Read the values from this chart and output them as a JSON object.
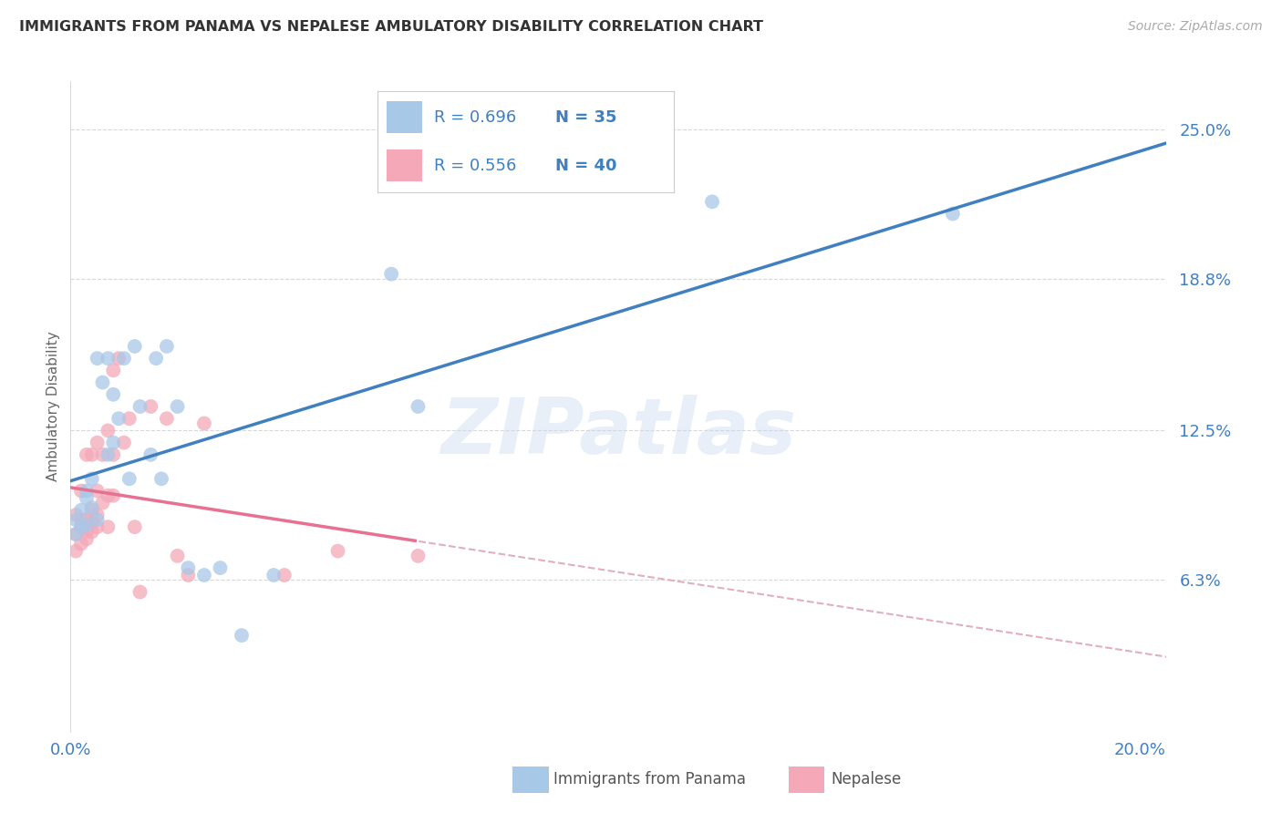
{
  "title": "IMMIGRANTS FROM PANAMA VS NEPALESE AMBULATORY DISABILITY CORRELATION CHART",
  "source": "Source: ZipAtlas.com",
  "ylabel_label": "Ambulatory Disability",
  "legend_label1": "Immigrants from Panama",
  "legend_label2": "Nepalese",
  "R1": 0.696,
  "N1": 35,
  "R2": 0.556,
  "N2": 40,
  "x_min": 0.0,
  "x_max": 0.205,
  "y_min": 0.0,
  "y_max": 0.27,
  "y_ticks": [
    0.063,
    0.125,
    0.188,
    0.25
  ],
  "y_tick_labels": [
    "6.3%",
    "12.5%",
    "18.8%",
    "25.0%"
  ],
  "x_tick_labels": [
    "0.0%",
    "20.0%"
  ],
  "color_blue": "#a8c8e8",
  "color_pink": "#f4a8b8",
  "line_blue": "#4080c0",
  "line_pink": "#e87090",
  "line_dashed_color": "#e0b0bc",
  "text_color": "#4080c0",
  "watermark": "ZIPatlas",
  "panama_x": [
    0.001,
    0.001,
    0.002,
    0.002,
    0.003,
    0.003,
    0.003,
    0.004,
    0.004,
    0.005,
    0.005,
    0.006,
    0.007,
    0.007,
    0.008,
    0.008,
    0.009,
    0.01,
    0.011,
    0.012,
    0.013,
    0.015,
    0.016,
    0.017,
    0.018,
    0.02,
    0.022,
    0.025,
    0.028,
    0.032,
    0.038,
    0.06,
    0.065,
    0.12,
    0.165
  ],
  "panama_y": [
    0.082,
    0.088,
    0.085,
    0.092,
    0.086,
    0.1,
    0.097,
    0.093,
    0.105,
    0.088,
    0.155,
    0.145,
    0.115,
    0.155,
    0.14,
    0.12,
    0.13,
    0.155,
    0.105,
    0.16,
    0.135,
    0.115,
    0.155,
    0.105,
    0.16,
    0.135,
    0.068,
    0.065,
    0.068,
    0.04,
    0.065,
    0.19,
    0.135,
    0.22,
    0.215
  ],
  "nepalese_x": [
    0.001,
    0.001,
    0.001,
    0.002,
    0.002,
    0.002,
    0.002,
    0.003,
    0.003,
    0.003,
    0.003,
    0.004,
    0.004,
    0.004,
    0.004,
    0.005,
    0.005,
    0.005,
    0.005,
    0.006,
    0.006,
    0.007,
    0.007,
    0.007,
    0.008,
    0.008,
    0.008,
    0.009,
    0.01,
    0.011,
    0.012,
    0.013,
    0.015,
    0.018,
    0.02,
    0.022,
    0.025,
    0.04,
    0.05,
    0.065
  ],
  "nepalese_y": [
    0.075,
    0.082,
    0.09,
    0.078,
    0.085,
    0.088,
    0.1,
    0.08,
    0.083,
    0.088,
    0.115,
    0.083,
    0.087,
    0.092,
    0.115,
    0.085,
    0.09,
    0.1,
    0.12,
    0.095,
    0.115,
    0.085,
    0.098,
    0.125,
    0.098,
    0.115,
    0.15,
    0.155,
    0.12,
    0.13,
    0.085,
    0.058,
    0.135,
    0.13,
    0.073,
    0.065,
    0.128,
    0.065,
    0.075,
    0.073
  ]
}
